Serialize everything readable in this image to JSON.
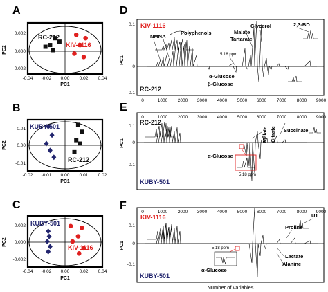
{
  "figure": {
    "colors": {
      "red": "#e0201f",
      "navy": "#22256e",
      "black": "#111111"
    },
    "pca": [
      {
        "panel": "A",
        "ylabel": "PC2",
        "xlabel": "PC1",
        "x_ticks": [
          "-0.04",
          "-0.02",
          "0.00",
          "0.02",
          "0.04"
        ],
        "y_ticks": [
          "0.002",
          "0.000",
          "-0.002"
        ],
        "labels": [
          {
            "text": "RC-212",
            "color": "black"
          },
          {
            "text": "KIV-1116",
            "color": "red"
          }
        ],
        "groups": [
          {
            "color": "black",
            "marker": "square",
            "points": [
              [
                -0.011,
                0.0012
              ],
              [
                -0.016,
                0.0004
              ],
              [
                -0.021,
                0.0002
              ],
              [
                -0.006,
                0.0008
              ],
              [
                -0.013,
                -0.0002
              ]
            ]
          },
          {
            "color": "red",
            "marker": "circle",
            "points": [
              [
                0.012,
                0.0016
              ],
              [
                0.022,
                0.0012
              ],
              [
                0.016,
                0.0004
              ],
              [
                0.01,
                -0.0006
              ],
              [
                0.02,
                -0.001
              ]
            ]
          }
        ]
      },
      {
        "panel": "B",
        "ylabel": "PC2",
        "xlabel": "PC1",
        "x_ticks": [
          "-0.02",
          "-0.01",
          "0.00",
          "0.01",
          "0.02"
        ],
        "y_ticks": [
          "0.01",
          "0.00",
          "-0.01"
        ],
        "labels": [
          {
            "text": "KUBY-501",
            "color": "navy"
          },
          {
            "text": "RC-212",
            "color": "black"
          }
        ],
        "groups": [
          {
            "color": "navy",
            "marker": "diamond",
            "points": [
              [
                -0.009,
                0.0022
              ],
              [
                -0.007,
                0.0012
              ],
              [
                -0.01,
                0.0002
              ],
              [
                -0.008,
                -0.0006
              ],
              [
                -0.006,
                -0.0014
              ]
            ]
          },
          {
            "color": "black",
            "marker": "square",
            "points": [
              [
                0.007,
                0.0024
              ],
              [
                0.009,
                0.0016
              ],
              [
                0.006,
                0.0006
              ],
              [
                0.008,
                0.0002
              ],
              [
                0.005,
                -0.0008
              ]
            ]
          }
        ]
      },
      {
        "panel": "C",
        "ylabel": "PC2",
        "xlabel": "PC1",
        "x_ticks": [
          "-0.04",
          "-0.02",
          "0.00",
          "0.02",
          "0.04"
        ],
        "y_ticks": [
          "0.002",
          "0.000",
          "-0.002"
        ],
        "labels": [
          {
            "text": "KUBY-501",
            "color": "navy"
          },
          {
            "text": "KIV-1116",
            "color": "red"
          }
        ],
        "groups": [
          {
            "color": "navy",
            "marker": "diamond",
            "points": [
              [
                -0.018,
                0.0012
              ],
              [
                -0.017,
                0.0006
              ],
              [
                -0.019,
                0.0
              ],
              [
                -0.016,
                -0.0006
              ],
              [
                -0.018,
                -0.0012
              ]
            ]
          },
          {
            "color": "red",
            "marker": "circle",
            "points": [
              [
                0.006,
                0.0018
              ],
              [
                0.018,
                0.0016
              ],
              [
                0.014,
                0.0006
              ],
              [
                0.008,
                0.0
              ],
              [
                0.02,
                -0.0008
              ],
              [
                0.015,
                -0.0014
              ]
            ]
          }
        ]
      }
    ],
    "spectra": [
      {
        "panel": "D",
        "ylabel": "PC1",
        "top_label": {
          "text": "KIV-1116",
          "color": "red"
        },
        "bottom_label": {
          "text": "RC-212",
          "color": "black"
        },
        "y_ticks": [
          "0.1",
          "0",
          "-0.1"
        ],
        "x_ticks": [
          "0",
          "1000",
          "2000",
          "3000",
          "4000",
          "5000",
          "6000",
          "7000",
          "8000",
          "9000"
        ],
        "annotations": [
          "NMNA",
          "Polyphenols",
          "Malate",
          "Tartarate",
          "Glycerol",
          "2,3-BD",
          "5.18 ppm",
          "α-Glucose",
          "β-Glucose"
        ],
        "xlabel": ""
      },
      {
        "panel": "E",
        "ylabel": "PC1",
        "top_label": {
          "text": "RC-212",
          "color": "black"
        },
        "bottom_label": {
          "text": "KUBY-501",
          "color": "navy"
        },
        "y_ticks": [
          "0.1",
          "0",
          "-0.1"
        ],
        "x_ticks": [
          "0",
          "1000",
          "2000",
          "3000",
          "4000",
          "5000",
          "6000",
          "7000",
          "8000",
          "9000"
        ],
        "annotations": [
          "Malate",
          "Citrate",
          "Succinate",
          "α-Glucose",
          "5.18 ppm"
        ],
        "xlabel": ""
      },
      {
        "panel": "F",
        "ylabel": "PC1",
        "top_label": {
          "text": "KIV-1116",
          "color": "red"
        },
        "bottom_label": {
          "text": "KUBY-501",
          "color": "navy"
        },
        "y_ticks": [
          "0.1",
          "0",
          "-0.1"
        ],
        "x_ticks": [
          "0",
          "1000",
          "2000",
          "3000",
          "4000",
          "5000",
          "6000",
          "7000",
          "8000",
          "9000"
        ],
        "annotations": [
          "U1",
          "Proline",
          "Lactate",
          "Alanine",
          "5.18 ppm",
          "α-Glucose"
        ],
        "xlabel": "Number of variables"
      }
    ]
  }
}
